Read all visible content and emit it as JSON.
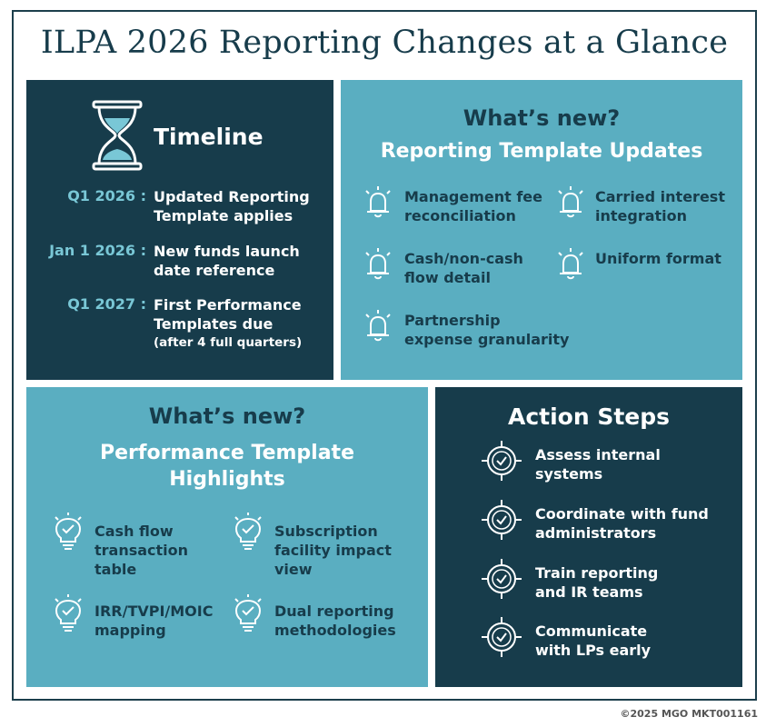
{
  "title": "ILPA 2026 Reporting Changes at a Glance",
  "timeline": {
    "heading": "Timeline",
    "icon": "hourglass-icon",
    "rows": [
      {
        "date": "Q1 2026 :",
        "line1": "Updated Reporting",
        "line2": "Template applies",
        "line3": ""
      },
      {
        "date": "Jan 1 2026 :",
        "line1": "New funds launch",
        "line2": "date reference",
        "line3": ""
      },
      {
        "date": "Q1 2027 :",
        "line1": "First Performance",
        "line2": "Templates due",
        "line3": "(after 4 full quarters)"
      }
    ]
  },
  "reporting": {
    "heading": "What’s new?",
    "subheading": "Reporting Template Updates",
    "icon": "bell-icon",
    "items": [
      {
        "line1": "Management fee",
        "line2": "reconciliation"
      },
      {
        "line1": "Carried interest",
        "line2": "integration"
      },
      {
        "line1": "Cash/non-cash",
        "line2": "flow detail"
      },
      {
        "line1": "Uniform format",
        "line2": ""
      },
      {
        "line1": "Partnership",
        "line2": "expense granularity"
      }
    ]
  },
  "performance": {
    "heading": "What’s new?",
    "subheading1": "Performance Template",
    "subheading2": "Highlights",
    "icon": "lightbulb-check-icon",
    "items": [
      {
        "line1": "Cash flow",
        "line2": "transaction",
        "line3": "table"
      },
      {
        "line1": "Subscription",
        "line2": "facility impact",
        "line3": "view"
      },
      {
        "line1": "IRR/TVPI/MOIC",
        "line2": "mapping",
        "line3": ""
      },
      {
        "line1": "Dual reporting",
        "line2": "methodologies",
        "line3": ""
      }
    ]
  },
  "actions": {
    "heading": "Action Steps",
    "icon": "target-check-icon",
    "items": [
      {
        "line1": "Assess internal",
        "line2": "systems"
      },
      {
        "line1": "Coordinate with fund",
        "line2": "administrators"
      },
      {
        "line1": "Train reporting",
        "line2": "and IR teams"
      },
      {
        "line1": "Communicate",
        "line2": "with LPs early"
      }
    ]
  },
  "footer": "©2025 MGO MKT001161",
  "colors": {
    "dark": "#173c4b",
    "light": "#5aaec1",
    "accent": "#79c7d6"
  }
}
